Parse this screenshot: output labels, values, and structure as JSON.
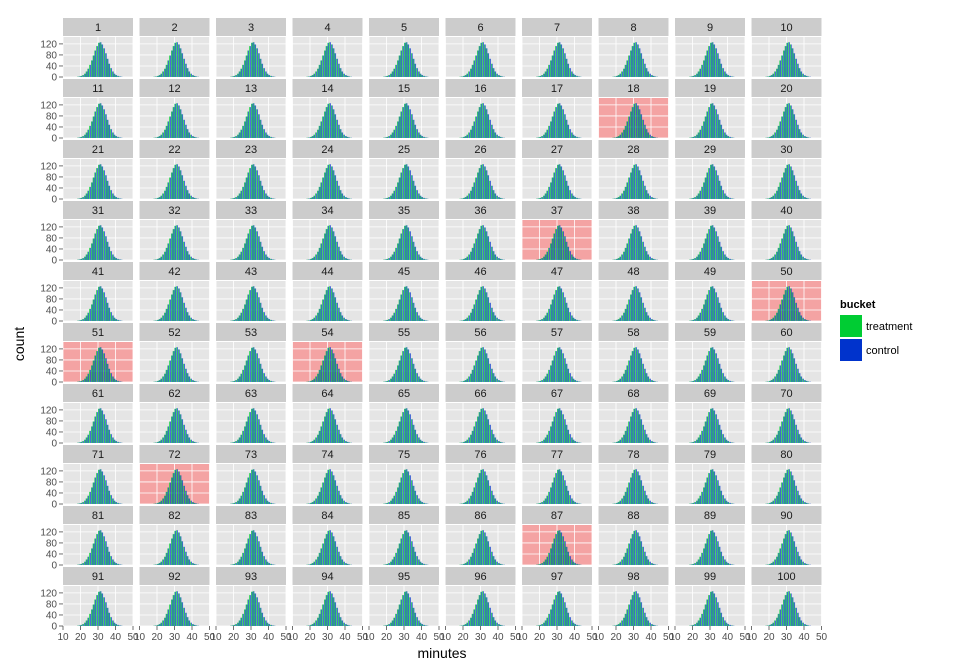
{
  "chart_data": {
    "type": "bar",
    "kind": "faceted histogram",
    "facet_labels": [
      "1",
      "2",
      "3",
      "4",
      "5",
      "6",
      "7",
      "8",
      "9",
      "10",
      "11",
      "12",
      "13",
      "14",
      "15",
      "16",
      "17",
      "18",
      "19",
      "20",
      "21",
      "22",
      "23",
      "24",
      "25",
      "26",
      "27",
      "28",
      "29",
      "30",
      "31",
      "32",
      "33",
      "34",
      "35",
      "36",
      "37",
      "38",
      "39",
      "40",
      "41",
      "42",
      "43",
      "44",
      "45",
      "46",
      "47",
      "48",
      "49",
      "50",
      "51",
      "52",
      "53",
      "54",
      "55",
      "56",
      "57",
      "58",
      "59",
      "60",
      "61",
      "62",
      "63",
      "64",
      "65",
      "66",
      "67",
      "68",
      "69",
      "70",
      "71",
      "72",
      "73",
      "74",
      "75",
      "76",
      "77",
      "78",
      "79",
      "80",
      "81",
      "82",
      "83",
      "84",
      "85",
      "86",
      "87",
      "88",
      "89",
      "90",
      "91",
      "92",
      "93",
      "94",
      "95",
      "96",
      "97",
      "98",
      "99",
      "100"
    ],
    "highlighted_facets": [
      "18",
      "37",
      "50",
      "51",
      "54",
      "72",
      "87"
    ],
    "highlight_color": "#f4a3a3",
    "xlabel": "minutes",
    "ylabel": "count",
    "xlim": [
      10,
      50
    ],
    "ylim": [
      0,
      145
    ],
    "x_ticks": [
      "10",
      "20",
      "30",
      "40",
      "50"
    ],
    "y_ticks": [
      "0",
      "40",
      "80",
      "120"
    ],
    "grid": true,
    "facet_rows": 10,
    "facet_cols": 10,
    "bins": [
      18,
      19,
      20,
      21,
      22,
      23,
      24,
      25,
      26,
      27,
      28,
      29,
      30,
      31,
      32,
      33,
      34,
      35,
      36,
      37,
      38,
      39,
      40,
      41,
      42,
      43
    ],
    "series": [
      {
        "name": "treatment",
        "color": "#00cc33",
        "values": [
          1,
          2,
          4,
          7,
          12,
          20,
          30,
          44,
          60,
          78,
          96,
          112,
          124,
          126,
          118,
          104,
          86,
          66,
          48,
          32,
          20,
          12,
          7,
          4,
          2,
          1
        ]
      },
      {
        "name": "control",
        "color": "#0033cc",
        "values": [
          1,
          2,
          4,
          7,
          12,
          20,
          30,
          44,
          60,
          78,
          96,
          112,
          124,
          126,
          118,
          104,
          86,
          66,
          48,
          32,
          20,
          12,
          7,
          4,
          2,
          1
        ]
      }
    ],
    "legend": {
      "title": "bucket",
      "position": "right"
    }
  }
}
